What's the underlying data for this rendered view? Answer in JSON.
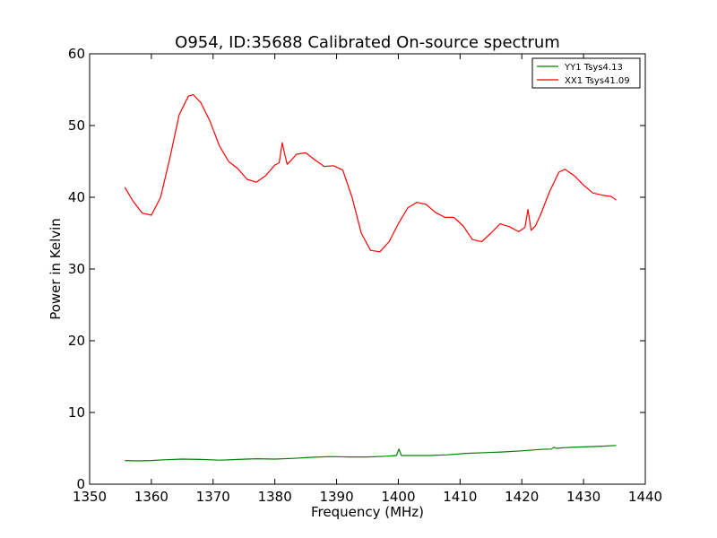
{
  "chart_data": {
    "type": "line",
    "title": "O954, ID:35688 Calibrated On-source spectrum",
    "xlabel": "Frequency (MHz)",
    "ylabel": "Power in Kelvin",
    "xlim": [
      1350,
      1440
    ],
    "ylim": [
      0,
      60
    ],
    "xticks": [
      1350,
      1360,
      1370,
      1380,
      1390,
      1400,
      1410,
      1420,
      1430,
      1440
    ],
    "yticks": [
      0,
      10,
      20,
      30,
      40,
      50,
      60
    ],
    "xtick_labels": [
      "1350",
      "1360",
      "1370",
      "1380",
      "1390",
      "1400",
      "1410",
      "1420",
      "1430",
      "1440"
    ],
    "ytick_labels": [
      "0",
      "10",
      "20",
      "30",
      "40",
      "50",
      "60"
    ],
    "grid": false,
    "legend_position": "top-right",
    "series": [
      {
        "name": "YY1 Tsys4.13",
        "color": "#008000",
        "x": [
          1355.7,
          1358,
          1360,
          1362,
          1365,
          1368,
          1371,
          1374,
          1377,
          1380,
          1383,
          1386,
          1389,
          1392,
          1395,
          1398,
          1399.7,
          1400.1,
          1400.5,
          1402,
          1405,
          1408,
          1411,
          1414,
          1417,
          1420,
          1423,
          1424.8,
          1425.2,
          1425.6,
          1427,
          1430,
          1433,
          1435.3
        ],
        "y": [
          3.3,
          3.25,
          3.3,
          3.4,
          3.5,
          3.45,
          3.35,
          3.45,
          3.55,
          3.5,
          3.6,
          3.75,
          3.85,
          3.8,
          3.8,
          3.9,
          4.0,
          4.9,
          4.0,
          4.0,
          4.0,
          4.1,
          4.3,
          4.4,
          4.5,
          4.65,
          4.85,
          4.9,
          5.15,
          5.0,
          5.1,
          5.2,
          5.3,
          5.4
        ]
      },
      {
        "name": "XX1 Tsys41.09",
        "color": "#ff0000",
        "x": [
          1355.7,
          1357,
          1358.5,
          1360,
          1361.5,
          1363,
          1364.5,
          1366,
          1366.8,
          1368,
          1369.5,
          1371,
          1372.5,
          1374,
          1375.5,
          1377,
          1378.5,
          1380,
          1380.7,
          1381.2,
          1381.6,
          1382,
          1382.5,
          1383.5,
          1385,
          1386.5,
          1388,
          1389.5,
          1391,
          1392.5,
          1394,
          1395.5,
          1397,
          1398.5,
          1400,
          1401.5,
          1403,
          1404.5,
          1406,
          1407.5,
          1409,
          1410.5,
          1412,
          1413.5,
          1415,
          1416.5,
          1418,
          1419.5,
          1420.5,
          1421,
          1421.5,
          1422.2,
          1423,
          1424.5,
          1426,
          1427,
          1428.5,
          1430,
          1431.5,
          1433,
          1434.5,
          1435.3
        ],
        "y": [
          41.4,
          39.5,
          37.8,
          37.5,
          40.0,
          45.5,
          51.5,
          54.1,
          54.3,
          53.2,
          50.6,
          47.2,
          45.0,
          44.0,
          42.5,
          42.1,
          43.0,
          44.5,
          44.8,
          47.6,
          46.0,
          44.6,
          45.0,
          46.0,
          46.2,
          45.2,
          44.3,
          44.4,
          43.8,
          40.0,
          35.0,
          32.6,
          32.4,
          33.8,
          36.3,
          38.5,
          39.3,
          39.0,
          37.9,
          37.2,
          37.2,
          36.0,
          34.1,
          33.8,
          35.0,
          36.3,
          35.9,
          35.2,
          35.8,
          38.3,
          35.4,
          36.0,
          37.5,
          40.8,
          43.5,
          43.9,
          43.0,
          41.7,
          40.6,
          40.3,
          40.1,
          39.6
        ]
      }
    ]
  }
}
